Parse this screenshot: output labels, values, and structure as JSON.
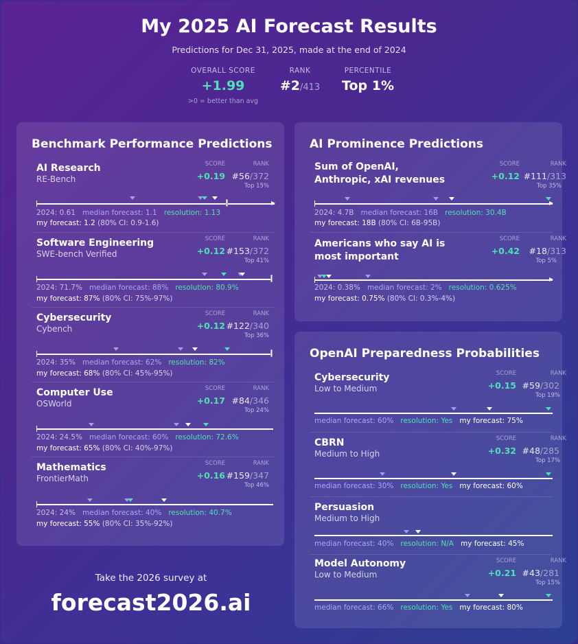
{
  "header": {
    "title": "My 2025 AI Forecast Results",
    "subtitle": "Predictions for Dec 31, 2025, made at the end of 2024",
    "overall_label": "OVERALL SCORE",
    "overall_value": "+1.99",
    "overall_note": ">0 = better than avg",
    "rank_label": "RANK",
    "rank_value": "#2",
    "rank_total": "/413",
    "percentile_label": "PERCENTILE",
    "percentile_value": "Top 1%"
  },
  "labels": {
    "score": "SCORE",
    "rank": "RANK",
    "median_prefix": "median forecast: ",
    "resolution_prefix": "resolution: ",
    "my_prefix": "my forecast: "
  },
  "benchmark": {
    "title": "Benchmark Performance Predictions",
    "items": [
      {
        "name": "AI Research",
        "sub": "RE-Bench",
        "score": "+0.19",
        "rank": "#56",
        "rank_total": "/372",
        "top": "Top 15%",
        "baseline": "2024: 0.61",
        "median": "1.1",
        "resolution": "1.13",
        "my": "1.2",
        "ci": "(80% CI: 0.9-1.6)"
      },
      {
        "name": "Software Engineering",
        "sub": "SWE-bench Verified",
        "score": "+0.12",
        "rank": "#153",
        "rank_total": "/372",
        "top": "Top 41%",
        "baseline": "2024: 71.7%",
        "median": "88%",
        "resolution": "80.9%",
        "my": "87%",
        "ci": "(80% CI: 75%-97%)"
      },
      {
        "name": "Cybersecurity",
        "sub": "Cybench",
        "score": "+0.12",
        "rank": "#122",
        "rank_total": "/340",
        "top": "Top 36%",
        "baseline": "2024: 35%",
        "median": "62%",
        "resolution": "82%",
        "my": "68%",
        "ci": "(80% CI: 45%-95%)"
      },
      {
        "name": "Computer Use",
        "sub": "OSWorld",
        "score": "+0.17",
        "rank": "#84",
        "rank_total": "/346",
        "top": "Top 24%",
        "baseline": "2024: 24.5%",
        "median": "60%",
        "resolution": "72.6%",
        "my": "65%",
        "ci": "(80% CI: 40%-97%)"
      },
      {
        "name": "Mathematics",
        "sub": "FrontierMath",
        "score": "+0.16",
        "rank": "#159",
        "rank_total": "/347",
        "top": "Top 46%",
        "baseline": "2024: 24%",
        "median": "40%",
        "resolution": "40.7%",
        "my": "55%",
        "ci": "(80% CI: 35%-92%)"
      }
    ]
  },
  "prominence": {
    "title": "AI Prominence Predictions",
    "items": [
      {
        "name": "Sum of OpenAI, Anthropic, xAI revenues",
        "score": "+0.12",
        "rank": "#111",
        "rank_total": "/313",
        "top": "Top 35%",
        "baseline": "2024: 4.7B",
        "median": "16B",
        "resolution": "30.4B",
        "my": "18B",
        "ci": "(80% CI: 6B-95B)"
      },
      {
        "name": "Americans who say AI is most important",
        "score": "+0.42",
        "rank": "#18",
        "rank_total": "/313",
        "top": "Top 5%",
        "baseline": "2024: 0.38%",
        "median": "2%",
        "resolution": "0.625%",
        "my": "0.75%",
        "ci": "(80% CI: 0.3%-4%)"
      }
    ]
  },
  "preparedness": {
    "title": "OpenAI Preparedness Probabilities",
    "items": [
      {
        "name": "Cybersecurity",
        "sub": "Low to Medium",
        "score": "+0.15",
        "rank": "#59",
        "rank_total": "/302",
        "top": "Top 19%",
        "median": "60%",
        "resolution": "Yes",
        "my": "75%"
      },
      {
        "name": "CBRN",
        "sub": "Medium to High",
        "score": "+0.32",
        "rank": "#48",
        "rank_total": "/285",
        "top": "Top 17%",
        "median": "30%",
        "resolution": "Yes",
        "my": "60%"
      },
      {
        "name": "Persuasion",
        "sub": "Medium to High",
        "median": "40%",
        "resolution": "N/A",
        "my": "45%"
      },
      {
        "name": "Model Autonomy",
        "sub": "Low to Medium",
        "score": "+0.21",
        "rank": "#43",
        "rank_total": "/281",
        "top": "Top 15%",
        "median": "66%",
        "resolution": "Yes",
        "my": "80%"
      }
    ]
  },
  "cta": {
    "text": "Take the 2026 survey at",
    "url": "forecast2026.ai"
  }
}
